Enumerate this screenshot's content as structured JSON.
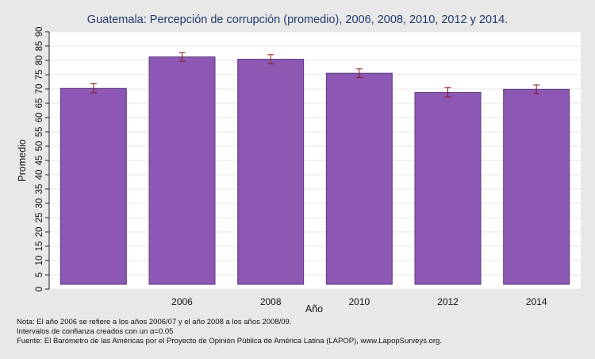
{
  "chart_data": {
    "type": "bar",
    "title": "Guatemala: Percepción de corrupción (promedio), 2006, 2008, 2010, 2012 y 2014.",
    "xlabel": "Año",
    "ylabel": "Promedio",
    "categories": [
      "",
      "2006",
      "2008",
      "2010",
      "2012",
      "2014"
    ],
    "values": [
      70.2,
      81.2,
      80.4,
      75.5,
      68.8,
      69.9
    ],
    "ci_low": [
      68.6,
      79.7,
      78.8,
      74.0,
      67.2,
      68.4
    ],
    "ci_high": [
      71.8,
      82.7,
      82.0,
      77.0,
      70.4,
      71.4
    ],
    "ylim": [
      0,
      90
    ],
    "yticks": [
      0,
      5,
      10,
      15,
      20,
      25,
      30,
      35,
      40,
      45,
      50,
      55,
      60,
      65,
      70,
      75,
      80,
      85,
      90
    ],
    "grid": true,
    "bar_color": "#8c58b4",
    "bar_edge_color": "#5e3a7f",
    "error_bar_color": "#8b1a1a",
    "grid_color": "#e6e6e6",
    "background_color": "#e8e8e8",
    "plot_background_color": "#ffffff"
  },
  "notes": {
    "line1": "Nota: El año 2006 se refiere a los años 2006/07 y el año 2008 a los años 2008/09.",
    "line2": "Intervalos de confianza creados con un α=0.05",
    "line3": "Fuente: El Barómetro de las Américas por el Proyecto de Opinión Pública de América Latina (LAPOP), www.LapopSurveys.org."
  }
}
